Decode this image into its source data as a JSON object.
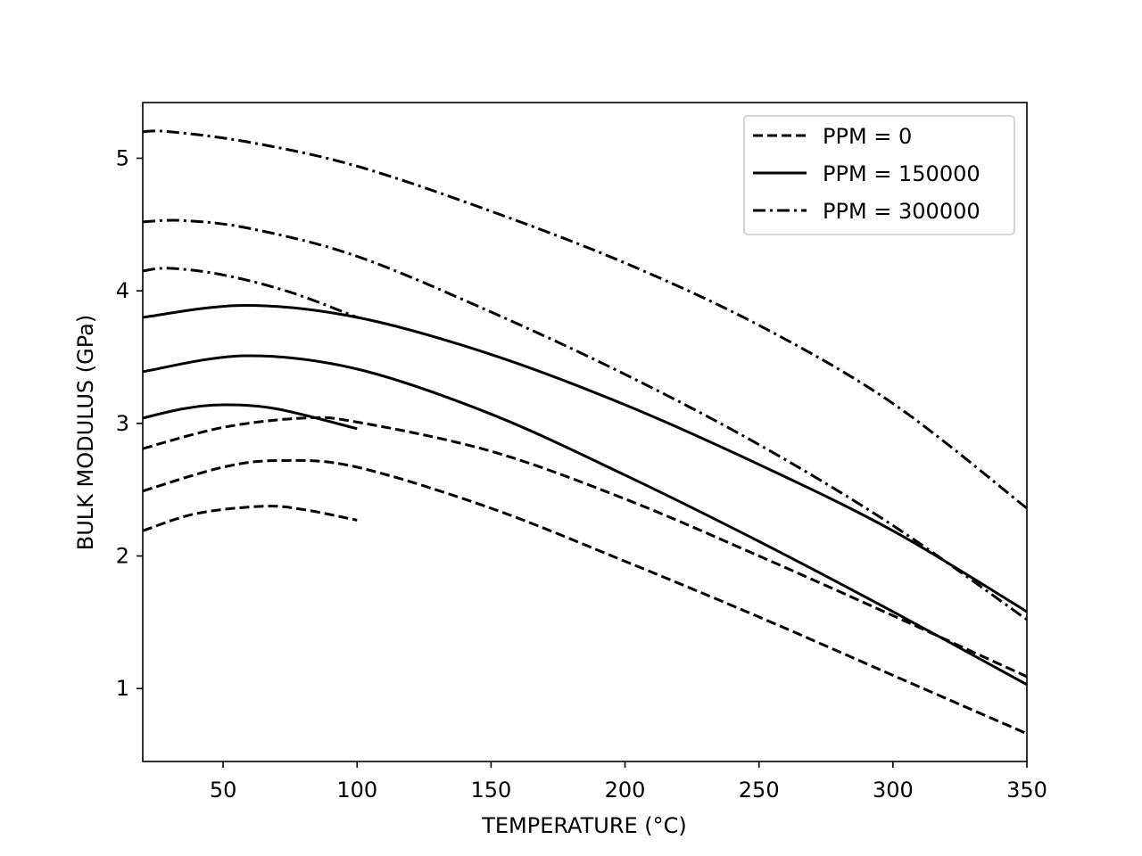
{
  "chart_data": {
    "type": "line",
    "title": "",
    "xlabel": "TEMPERATURE (°C)",
    "ylabel": "BULK MODULUS (GPa)",
    "xlim": [
      20,
      350
    ],
    "ylim": [
      0.45,
      5.42
    ],
    "xticks": [
      50,
      100,
      150,
      200,
      250,
      300,
      350
    ],
    "yticks": [
      1,
      2,
      3,
      4,
      5
    ],
    "xtick_labels": [
      "50",
      "100",
      "150",
      "200",
      "250",
      "300",
      "350"
    ],
    "ytick_labels": [
      "1",
      "2",
      "3",
      "4",
      "5"
    ],
    "grid": false,
    "legend_position": "top-right",
    "legend": [
      {
        "label": "PPM = 0",
        "style": "dashed"
      },
      {
        "label": "PPM = 150000",
        "style": "solid"
      },
      {
        "label": "PPM = 300000",
        "style": "dashdot"
      }
    ],
    "series": [
      {
        "name": "PPM = 0",
        "style": "dashed",
        "x": [
          20,
          40,
          65,
          80,
          100
        ],
        "y": [
          2.19,
          2.32,
          2.375,
          2.35,
          2.27
        ]
      },
      {
        "name": "PPM = 0",
        "style": "dashed",
        "x": [
          20,
          50,
          72,
          100,
          150,
          200,
          250,
          300,
          350
        ],
        "y": [
          2.49,
          2.67,
          2.72,
          2.67,
          2.36,
          1.96,
          1.54,
          1.1,
          0.66
        ]
      },
      {
        "name": "PPM = 0",
        "style": "dashed",
        "x": [
          20,
          50,
          80,
          100,
          150,
          200,
          250,
          300,
          350
        ],
        "y": [
          2.81,
          2.97,
          3.04,
          3.01,
          2.79,
          2.43,
          2.0,
          1.55,
          1.09
        ]
      },
      {
        "name": "PPM = 150000",
        "style": "solid",
        "x": [
          20,
          35,
          50,
          70,
          100
        ],
        "y": [
          3.04,
          3.11,
          3.14,
          3.11,
          2.96
        ]
      },
      {
        "name": "PPM = 150000",
        "style": "solid",
        "x": [
          20,
          58,
          100,
          150,
          200,
          250,
          300,
          350
        ],
        "y": [
          3.39,
          3.51,
          3.41,
          3.07,
          2.61,
          2.11,
          1.58,
          1.03
        ]
      },
      {
        "name": "PPM = 150000",
        "style": "solid",
        "x": [
          20,
          58,
          100,
          150,
          200,
          250,
          300,
          350
        ],
        "y": [
          3.8,
          3.89,
          3.8,
          3.52,
          3.14,
          2.69,
          2.19,
          1.58
        ]
      },
      {
        "name": "PPM = 300000",
        "style": "dashdot",
        "x": [
          20,
          30,
          50,
          75,
          100
        ],
        "y": [
          4.15,
          4.17,
          4.12,
          3.99,
          3.8
        ]
      },
      {
        "name": "PPM = 300000",
        "style": "dashdot",
        "x": [
          20,
          35,
          60,
          100,
          150,
          200,
          250,
          300,
          350
        ],
        "y": [
          4.52,
          4.53,
          4.47,
          4.26,
          3.84,
          3.37,
          2.84,
          2.23,
          1.52
        ]
      },
      {
        "name": "PPM = 300000",
        "style": "dashdot",
        "x": [
          20,
          30,
          60,
          100,
          150,
          200,
          250,
          300,
          350
        ],
        "y": [
          5.2,
          5.2,
          5.12,
          4.94,
          4.6,
          4.21,
          3.74,
          3.15,
          2.36
        ]
      }
    ]
  }
}
